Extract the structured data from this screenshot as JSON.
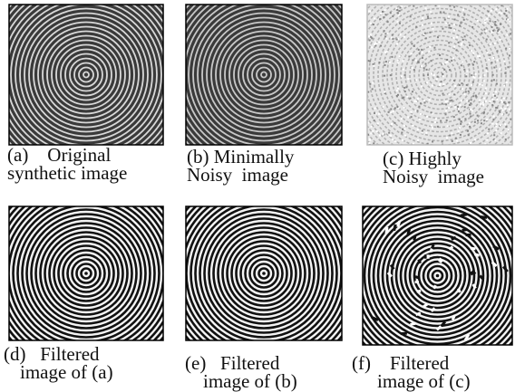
{
  "panels": [
    {
      "caption": [
        "(a)    Original",
        "synthetic image"
      ]
    },
    {
      "caption": [
        "(b) Minimally",
        "Noisy  image"
      ]
    },
    {
      "caption": [
        "(c) Highly",
        "Noisy  image"
      ]
    },
    {
      "caption": [
        "(d)   Filtered",
        "image of (a)"
      ]
    },
    {
      "caption": [
        "(e)   Filtered",
        "image of (b)"
      ]
    },
    {
      "caption": [
        "(f)    Filtered",
        "image of (c)"
      ]
    }
  ]
}
